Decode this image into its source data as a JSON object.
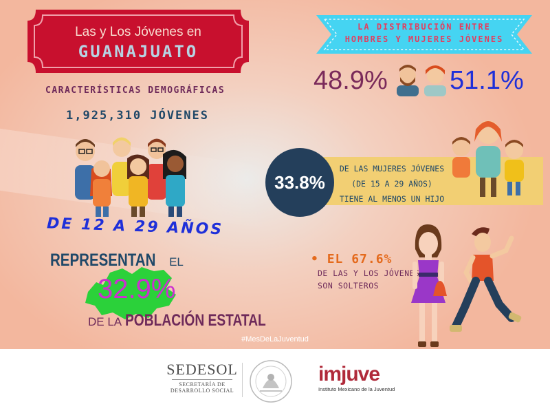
{
  "header": {
    "line1": "Las y Los Jóvenes  en",
    "line2": "GUANAJUATO"
  },
  "demographics": {
    "heading": "CARACTERÍSTICAS DEMOGRÁFICAS",
    "total": "1,925,310 JÓVENES",
    "age_range": "DE 12 A 29 AÑOS"
  },
  "population": {
    "represent": "REPRESENTAN",
    "el": "EL",
    "percent": "32.9%",
    "de_la": "DE LA",
    "poblacion": "POBLACIÓN ESTATAL"
  },
  "distribution": {
    "banner_line1": "LA DISTRIBUCIÓN ENTRE",
    "banner_line2": "HOMBRES Y MUJERES JÓVENES",
    "men_pct": "48.9%",
    "women_pct": "51.1%"
  },
  "mothers": {
    "percent": "33.8%",
    "line1": "DE LAS MUJERES JÓVENES",
    "line2": "(DE 15 A 29 AÑOS)",
    "line3": "TIENE AL MENOS UN HIJO"
  },
  "single": {
    "bullet": "•",
    "line1": "EL 67.6%",
    "line2": "DE LAS Y LOS JÓVENES",
    "line3": "SON SOLTEROS"
  },
  "hashtag": "#MesDeLaJuventud",
  "footer": {
    "sedesol": "SEDESOL",
    "sedesol_sub1": "SECRETARÍA DE",
    "sedesol_sub2": "DESARROLLO SOCIAL",
    "seal_text": "ESTADOS UNIDOS MEXICANOS",
    "imjuve": "imjuve",
    "imjuve_sub": "Instituto Mexicano de la Juventud"
  },
  "colors": {
    "header_red": "#c8102e",
    "heading_purple": "#6e2a5a",
    "dark_blue": "#1f4868",
    "bright_blue": "#1e2fd9",
    "magenta": "#cc2fd0",
    "green_map": "#2bd13a",
    "circle_navy": "#243f5b",
    "orange": "#e46a1c",
    "banner_cyan": "#45d4f2",
    "yellow_band": "#f2cf73"
  }
}
